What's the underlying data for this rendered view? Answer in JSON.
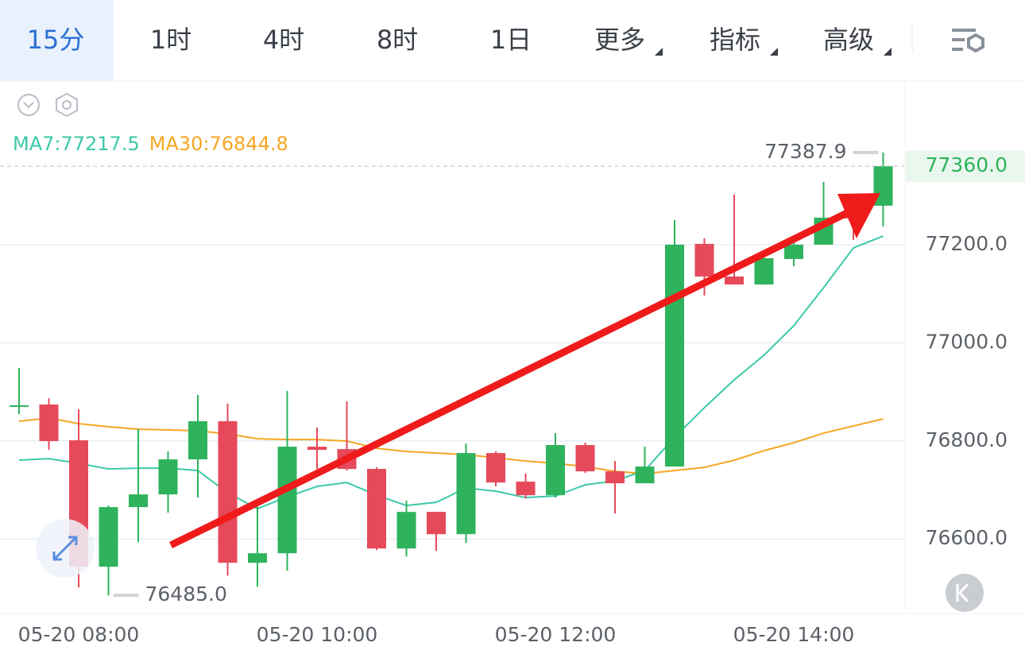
{
  "tabs": [
    {
      "label": "15分",
      "active": true,
      "dropdown": false
    },
    {
      "label": "1时",
      "active": false,
      "dropdown": false
    },
    {
      "label": "4时",
      "active": false,
      "dropdown": false
    },
    {
      "label": "8时",
      "active": false,
      "dropdown": false
    },
    {
      "label": "1日",
      "active": false,
      "dropdown": false
    },
    {
      "label": "更多",
      "active": false,
      "dropdown": true
    },
    {
      "label": "指标",
      "active": false,
      "dropdown": true
    },
    {
      "label": "高级",
      "active": false,
      "dropdown": true
    }
  ],
  "chart_data": {
    "type": "candlestick",
    "categories": [
      null,
      null,
      "05-20 08:00",
      null,
      null,
      null,
      null,
      null,
      null,
      null,
      "05-20 10:00",
      null,
      null,
      null,
      null,
      null,
      null,
      null,
      "05-20 12:00",
      null,
      null,
      null,
      null,
      null,
      null,
      null,
      "05-20 14:00",
      null,
      null,
      null
    ],
    "open": [
      76869.2,
      76874.1,
      76801.1,
      76543.3,
      76664.9,
      76690.8,
      76762.2,
      76840.0,
      76551.4,
      76570.8,
      76788.1,
      76783.2,
      76742.7,
      76580.5,
      76655.1,
      76609.7,
      76775.1,
      76716.8,
      76689.2,
      76791.4,
      76737.8,
      76713.5,
      76747.6,
      77201.6,
      77135.1,
      77118.9,
      77170.8,
      77200.0,
      77271.4,
      77279.5
    ],
    "high": [
      76948.7,
      76887.0,
      76864.3,
      76668.1,
      76823.8,
      76778.4,
      76893.5,
      76875.7,
      76668.1,
      76901.6,
      76827.0,
      76880.5,
      76746.0,
      76677.8,
      76655.1,
      76794.6,
      76778.4,
      76733.0,
      76815.7,
      76796.2,
      76758.9,
      76788.1,
      77250.3,
      77213.0,
      77302.2,
      77175.7,
      77213.0,
      77328.1,
      77281.1,
      77387.9
    ],
    "low": [
      76854.6,
      76781.6,
      76501.1,
      76485.0,
      76593.5,
      76653.5,
      76684.3,
      76525.4,
      76502.7,
      76535.1,
      76742.7,
      76739.5,
      76577.3,
      76564.3,
      76575.7,
      76591.9,
      76707.0,
      76682.7,
      76684.3,
      76734.6,
      76651.9,
      76713.5,
      76747.6,
      77096.2,
      77118.9,
      77118.9,
      77156.2,
      77200.0,
      77209.7,
      77237.3
    ],
    "close": [
      76872.4,
      76799.5,
      76543.3,
      76664.9,
      76690.8,
      76762.2,
      76840.0,
      76551.4,
      76570.8,
      76788.1,
      76781.6,
      76742.7,
      76580.5,
      76655.1,
      76609.7,
      76775.1,
      76715.1,
      76689.2,
      76791.4,
      76737.8,
      76713.5,
      76747.6,
      77200.0,
      77135.1,
      77118.9,
      77172.4,
      77200.0,
      77255.1,
      77253.5,
      77360.0
    ],
    "up_color": "#2eb35c",
    "down_color": "#e5495a",
    "series": [
      {
        "name": "MA7:77217.5",
        "color": "#3cc9a8",
        "values": [
          76760.5,
          76763.8,
          76754.1,
          76742.7,
          76744.3,
          76744.3,
          76739.5,
          76694.1,
          76661.6,
          76685.9,
          76707.0,
          76715.1,
          76689.2,
          76668.1,
          76674.6,
          76703.8,
          76697.3,
          76684.3,
          76687.6,
          76710.3,
          76718.4,
          76739.5,
          76807.6,
          76867.6,
          76924.3,
          76974.6,
          77034.6,
          77112.4,
          77193.5,
          77217.5
        ]
      },
      {
        "name": "MA30:76844.8",
        "color": "#f5a623",
        "values": [
          76840.0,
          76846.5,
          76835.1,
          76828.7,
          76823.8,
          76822.2,
          76820.5,
          76814.1,
          76804.3,
          76802.7,
          76802.7,
          76799.5,
          76784.9,
          76778.4,
          76775.1,
          76771.9,
          76765.4,
          76758.9,
          76754.1,
          76747.6,
          76737.8,
          76733.0,
          76739.5,
          76746.0,
          76760.5,
          76780.0,
          76796.2,
          76815.7,
          76830.3,
          76844.8
        ]
      }
    ],
    "ylim": [
      76448,
      77532
    ],
    "yticks": [
      {
        "value": 76600,
        "label": "76600.0"
      },
      {
        "value": 76800,
        "label": "76800.0"
      },
      {
        "value": 77000,
        "label": "77000.0"
      },
      {
        "value": 77200,
        "label": "77200.0"
      }
    ],
    "grid": true,
    "max_label": "77387.9",
    "min_label": "76485.0",
    "last_price_label": "77360.0"
  }
}
